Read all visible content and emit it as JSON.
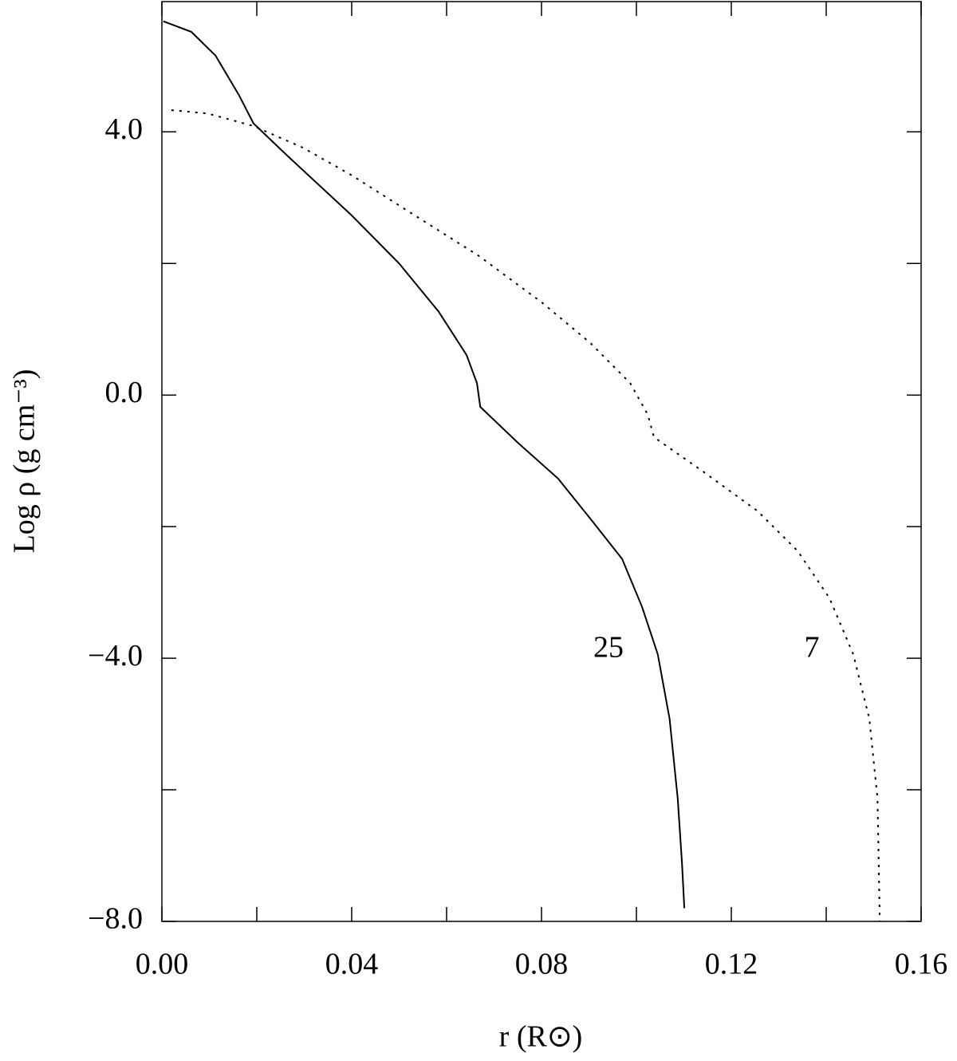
{
  "chart_data": {
    "type": "line",
    "x_label": "r (R⊙)",
    "y_label": "Log ρ (g cm⁻³)",
    "xlim": [
      0,
      0.16
    ],
    "ylim": [
      -8,
      5.98
    ],
    "xticks": [
      {
        "value": 0,
        "label": "0.00"
      },
      {
        "value": 0.04,
        "label": "0.04"
      },
      {
        "value": 0.08,
        "label": "0.08"
      },
      {
        "value": 0.12,
        "label": "0.12"
      },
      {
        "value": 0.16,
        "label": "0.16"
      }
    ],
    "xminor_ticks": [
      0.02,
      0.06,
      0.1,
      0.14
    ],
    "yticks": [
      {
        "value": -8,
        "label": "−8.0"
      },
      {
        "value": -4,
        "label": "−4.0"
      },
      {
        "value": 0,
        "label": "0.0"
      },
      {
        "value": 4,
        "label": "4.0"
      }
    ],
    "yminor_ticks": [
      -6,
      -2,
      2
    ],
    "series": [
      {
        "name": "25",
        "color": "#000000",
        "dash": "solid",
        "x": [
          0.0003,
          0.0062,
          0.0113,
          0.0163,
          0.0193,
          0.0264,
          0.04,
          0.05,
          0.0583,
          0.0642,
          0.0664,
          0.0671,
          0.0751,
          0.0835,
          0.0903,
          0.097,
          0.1012,
          0.1045,
          0.107,
          0.1087,
          0.1096,
          0.1101
        ],
        "values": [
          5.68,
          5.52,
          5.16,
          4.55,
          4.13,
          3.64,
          2.73,
          2.0,
          1.27,
          0.61,
          0.18,
          -0.18,
          -0.73,
          -1.27,
          -1.88,
          -2.49,
          -3.22,
          -3.94,
          -4.92,
          -6.13,
          -7.1,
          -7.8
        ]
      },
      {
        "name": "7",
        "color": "#000000",
        "dash": "dotted",
        "x": [
          0.002,
          0.0096,
          0.0193,
          0.0297,
          0.04,
          0.0533,
          0.0667,
          0.0802,
          0.0903,
          0.0987,
          0.1024,
          0.1037,
          0.1138,
          0.1255,
          0.134,
          0.1407,
          0.1457,
          0.1491,
          0.1508,
          0.1513
        ],
        "values": [
          4.33,
          4.28,
          4.09,
          3.76,
          3.34,
          2.73,
          2.12,
          1.4,
          0.79,
          0.18,
          -0.3,
          -0.64,
          -1.15,
          -1.76,
          -2.37,
          -3.09,
          -3.94,
          -4.92,
          -6.13,
          -8.0
        ]
      }
    ]
  }
}
